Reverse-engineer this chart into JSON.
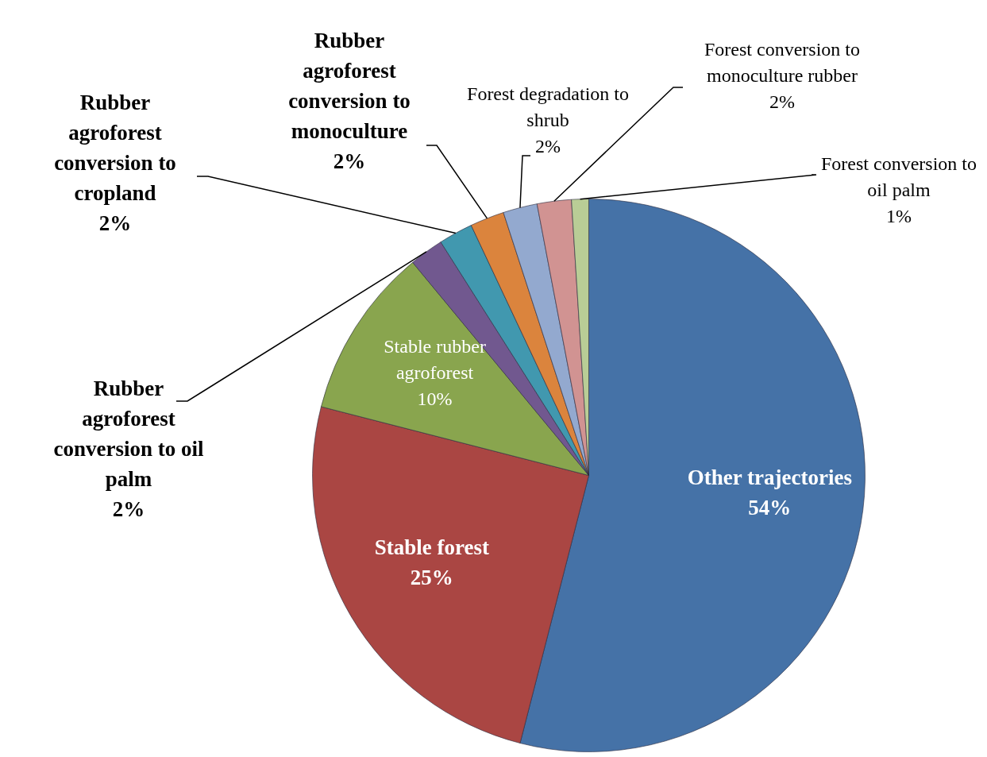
{
  "chart_data": {
    "type": "pie",
    "categories": [
      "Other trajectories",
      "Stable forest",
      "Stable rubber agroforest",
      "Rubber agroforest conversion to oil palm",
      "Rubber agroforest conversion to cropland",
      "Rubber agroforest conversion to monoculture",
      "Forest degradation to shrub",
      "Forest conversion to monoculture rubber",
      "Forest conversion to oil palm"
    ],
    "values": [
      54,
      25,
      10,
      2,
      2,
      2,
      2,
      2,
      1
    ],
    "value_labels": [
      "54%",
      "25%",
      "10%",
      "2%",
      "2%",
      "2%",
      "2%",
      "2%",
      "1%"
    ],
    "colors": [
      "#4572a7",
      "#aa4643",
      "#89a54e",
      "#71588f",
      "#4198af",
      "#db843d",
      "#93a9cf",
      "#d19392",
      "#b9cd96"
    ],
    "legend": false
  }
}
